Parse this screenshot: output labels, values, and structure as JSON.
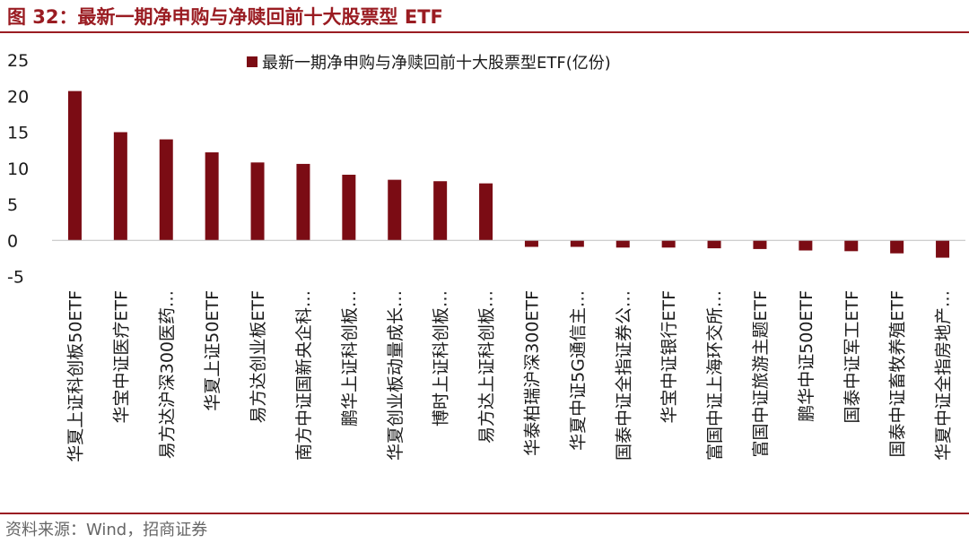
{
  "header": {
    "title": "图 32：最新一期净申购与净赎回前十大股票型 ETF"
  },
  "footer": {
    "source": "资料来源：Wind，招商证券"
  },
  "colors": {
    "accent": "#9a1c22",
    "bar": "#7b0c14"
  },
  "chart_data": {
    "type": "bar",
    "categories": [
      "华夏上证科创板50ETF",
      "华宝中证医疗ETF",
      "易方达沪深300医药…",
      "华夏上证50ETF",
      "易方达创业板ETF",
      "南方中证国新央企科…",
      "鹏华上证科创板…",
      "华夏创业板动量成长…",
      "博时上证科创板…",
      "易方达上证科创板…",
      "华泰柏瑞沪深300ETF",
      "华夏中证5G通信主…",
      "国泰中证全指证券公…",
      "华宝中证银行ETF",
      "富国中证上海环交所…",
      "富国中证旅游主题ETF",
      "鹏华中证500ETF",
      "国泰中证军工ETF",
      "国泰中证畜牧养殖ETF",
      "华夏中证全指房地产…"
    ],
    "series": [
      {
        "name": "最新一期净申购与净赎回前十大股票型ETF(亿份)",
        "values": [
          20.7,
          15.0,
          14.0,
          12.2,
          10.8,
          10.6,
          9.1,
          8.4,
          8.2,
          7.9,
          -0.9,
          -0.9,
          -1.0,
          -1.0,
          -1.1,
          -1.2,
          -1.4,
          -1.5,
          -1.8,
          -2.4
        ]
      }
    ],
    "yticks": [
      "25",
      "20",
      "15",
      "10",
      "5",
      "0",
      "-5"
    ],
    "ylim": [
      -5,
      25
    ],
    "grid": false,
    "legend_position": "top-center"
  }
}
